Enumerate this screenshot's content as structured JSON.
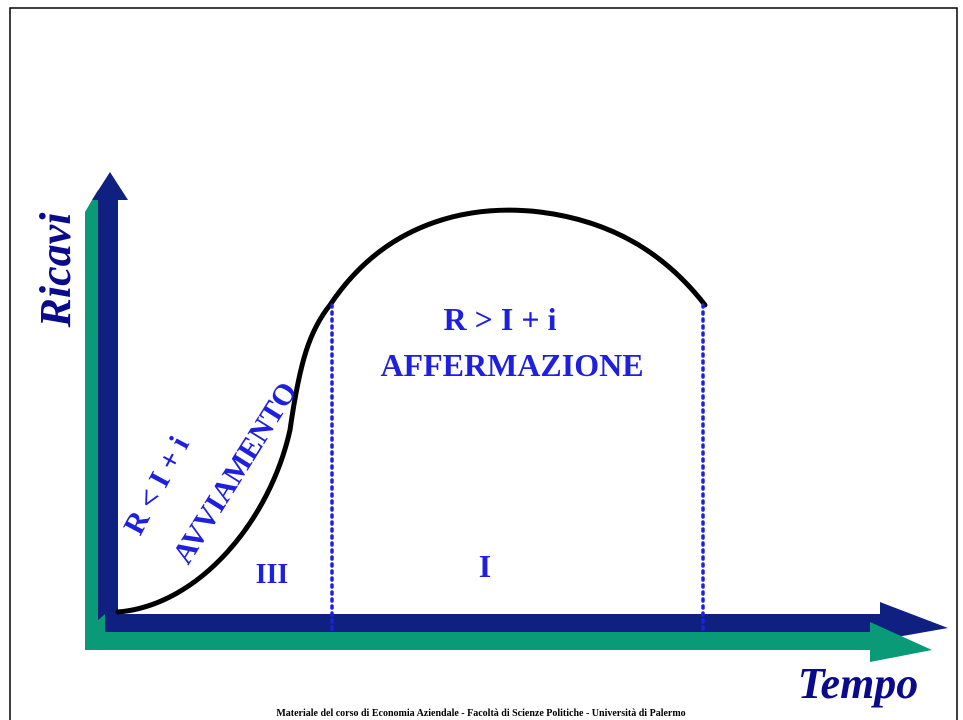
{
  "diagram": {
    "y_axis_label": "Ricavi",
    "x_axis_label": "Tempo",
    "phases": [
      {
        "condition": "R < I + i",
        "name": "AVVIAMENTO",
        "numeral": "III"
      },
      {
        "condition": "R > I + i",
        "name": "AFFERMAZIONE",
        "numeral": "I"
      }
    ],
    "footer": "Materiale del corso di Economia Aziendale - Facoltà di Scienze Politiche - Università di Palermo"
  }
}
